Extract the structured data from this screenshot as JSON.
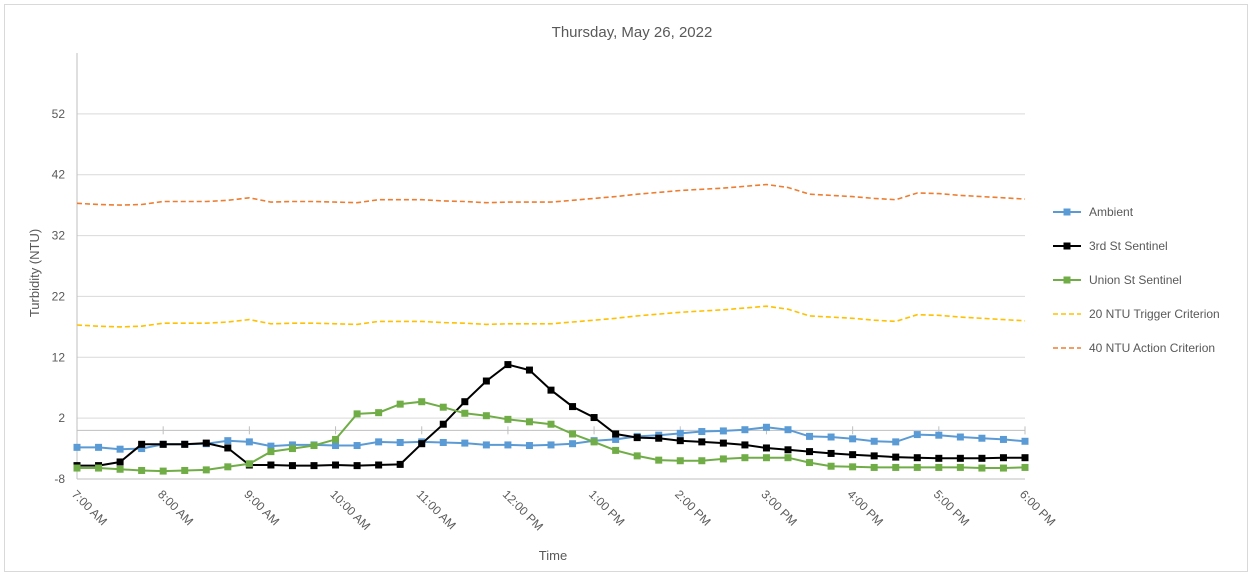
{
  "chart_data": {
    "type": "line",
    "title": "Thursday, May 26, 2022",
    "xlabel": "Time",
    "ylabel": "Turbidity (NTU)",
    "ylim": [
      -8,
      62
    ],
    "yticks": [
      -8,
      2,
      12,
      22,
      32,
      42,
      52
    ],
    "x_tick_labels": [
      "7:00 AM",
      "8:00 AM",
      "9:00 AM",
      "10:00 AM",
      "11:00 AM",
      "12:00 PM",
      "1:00 PM",
      "2:00 PM",
      "3:00 PM",
      "4:00 PM",
      "5:00 PM",
      "6:00 PM"
    ],
    "x_range_hours": [
      7,
      18
    ],
    "grid": "horizontal",
    "legend_position": "right",
    "x_hours": [
      7.0,
      7.25,
      7.5,
      7.75,
      8.0,
      8.25,
      8.5,
      8.75,
      9.0,
      9.25,
      9.5,
      9.75,
      10.0,
      10.25,
      10.5,
      10.75,
      11.0,
      11.25,
      11.5,
      11.75,
      12.0,
      12.25,
      12.5,
      12.75,
      13.0,
      13.25,
      13.5,
      13.75,
      14.0,
      14.25,
      14.5,
      14.75,
      15.0,
      15.25,
      15.5,
      15.75,
      16.0,
      16.25,
      16.5,
      16.75,
      17.0,
      17.25,
      17.5,
      17.75,
      18.0
    ],
    "series": [
      {
        "name": "Ambient",
        "color": "#5b9bd5",
        "style": "solid",
        "marker": "square",
        "values": [
          -2.8,
          -2.8,
          -3.1,
          -3.0,
          -2.3,
          -2.3,
          -2.2,
          -1.7,
          -1.9,
          -2.6,
          -2.4,
          -2.4,
          -2.5,
          -2.5,
          -1.9,
          -2.0,
          -1.9,
          -2.0,
          -2.1,
          -2.4,
          -2.4,
          -2.5,
          -2.4,
          -2.2,
          -1.7,
          -1.5,
          -1.0,
          -0.8,
          -0.5,
          -0.2,
          -0.1,
          0.1,
          0.5,
          0.1,
          -1.0,
          -1.1,
          -1.4,
          -1.8,
          -1.9,
          -0.7,
          -0.8,
          -1.1,
          -1.3,
          -1.5,
          -1.8
        ]
      },
      {
        "name": "3rd St Sentinel",
        "color": "#000000",
        "style": "solid",
        "marker": "square",
        "values": [
          -5.8,
          -5.8,
          -5.2,
          -2.3,
          -2.3,
          -2.3,
          -2.1,
          -2.9,
          -5.7,
          -5.7,
          -5.8,
          -5.8,
          -5.7,
          -5.8,
          -5.7,
          -5.6,
          -2.2,
          1.0,
          4.7,
          8.1,
          10.8,
          9.9,
          6.6,
          3.9,
          2.1,
          -0.6,
          -1.2,
          -1.3,
          -1.7,
          -1.9,
          -2.1,
          -2.4,
          -2.9,
          -3.2,
          -3.5,
          -3.8,
          -4.0,
          -4.2,
          -4.4,
          -4.5,
          -4.6,
          -4.6,
          -4.6,
          -4.5,
          -4.5
        ]
      },
      {
        "name": "Union St Sentinel",
        "color": "#70ad47",
        "style": "solid",
        "marker": "square",
        "values": [
          -6.2,
          -6.2,
          -6.4,
          -6.6,
          -6.7,
          -6.6,
          -6.5,
          -6.0,
          -5.5,
          -3.5,
          -3.0,
          -2.5,
          -1.5,
          2.7,
          2.9,
          4.3,
          4.7,
          3.8,
          2.8,
          2.4,
          1.8,
          1.4,
          1.0,
          -0.6,
          -1.9,
          -3.3,
          -4.2,
          -4.9,
          -5.0,
          -5.0,
          -4.7,
          -4.5,
          -4.5,
          -4.5,
          -5.3,
          -5.9,
          -6.0,
          -6.1,
          -6.1,
          -6.1,
          -6.1,
          -6.1,
          -6.2,
          -6.2,
          -6.1
        ]
      },
      {
        "name": "20 NTU Trigger Criterion",
        "color": "#ffc000",
        "style": "dashed",
        "marker": "none",
        "values": [
          17.3,
          17.1,
          17.0,
          17.1,
          17.6,
          17.6,
          17.6,
          17.8,
          18.2,
          17.5,
          17.6,
          17.6,
          17.5,
          17.4,
          17.9,
          17.9,
          17.9,
          17.7,
          17.6,
          17.4,
          17.5,
          17.5,
          17.5,
          17.8,
          18.1,
          18.4,
          18.8,
          19.1,
          19.4,
          19.6,
          19.8,
          20.1,
          20.4,
          19.9,
          18.8,
          18.6,
          18.4,
          18.1,
          17.9,
          19.0,
          18.9,
          18.6,
          18.4,
          18.2,
          18.0
        ]
      },
      {
        "name": "40 NTU Action Criterion",
        "color": "#ed7d31",
        "style": "dashed",
        "marker": "none",
        "values": [
          37.3,
          37.1,
          37.0,
          37.1,
          37.6,
          37.6,
          37.6,
          37.8,
          38.2,
          37.5,
          37.6,
          37.6,
          37.5,
          37.4,
          37.9,
          37.9,
          37.9,
          37.7,
          37.6,
          37.4,
          37.5,
          37.5,
          37.5,
          37.8,
          38.1,
          38.4,
          38.8,
          39.1,
          39.4,
          39.6,
          39.8,
          40.1,
          40.4,
          39.9,
          38.8,
          38.6,
          38.4,
          38.1,
          37.9,
          39.0,
          38.9,
          38.6,
          38.4,
          38.2,
          38.0
        ]
      }
    ]
  }
}
